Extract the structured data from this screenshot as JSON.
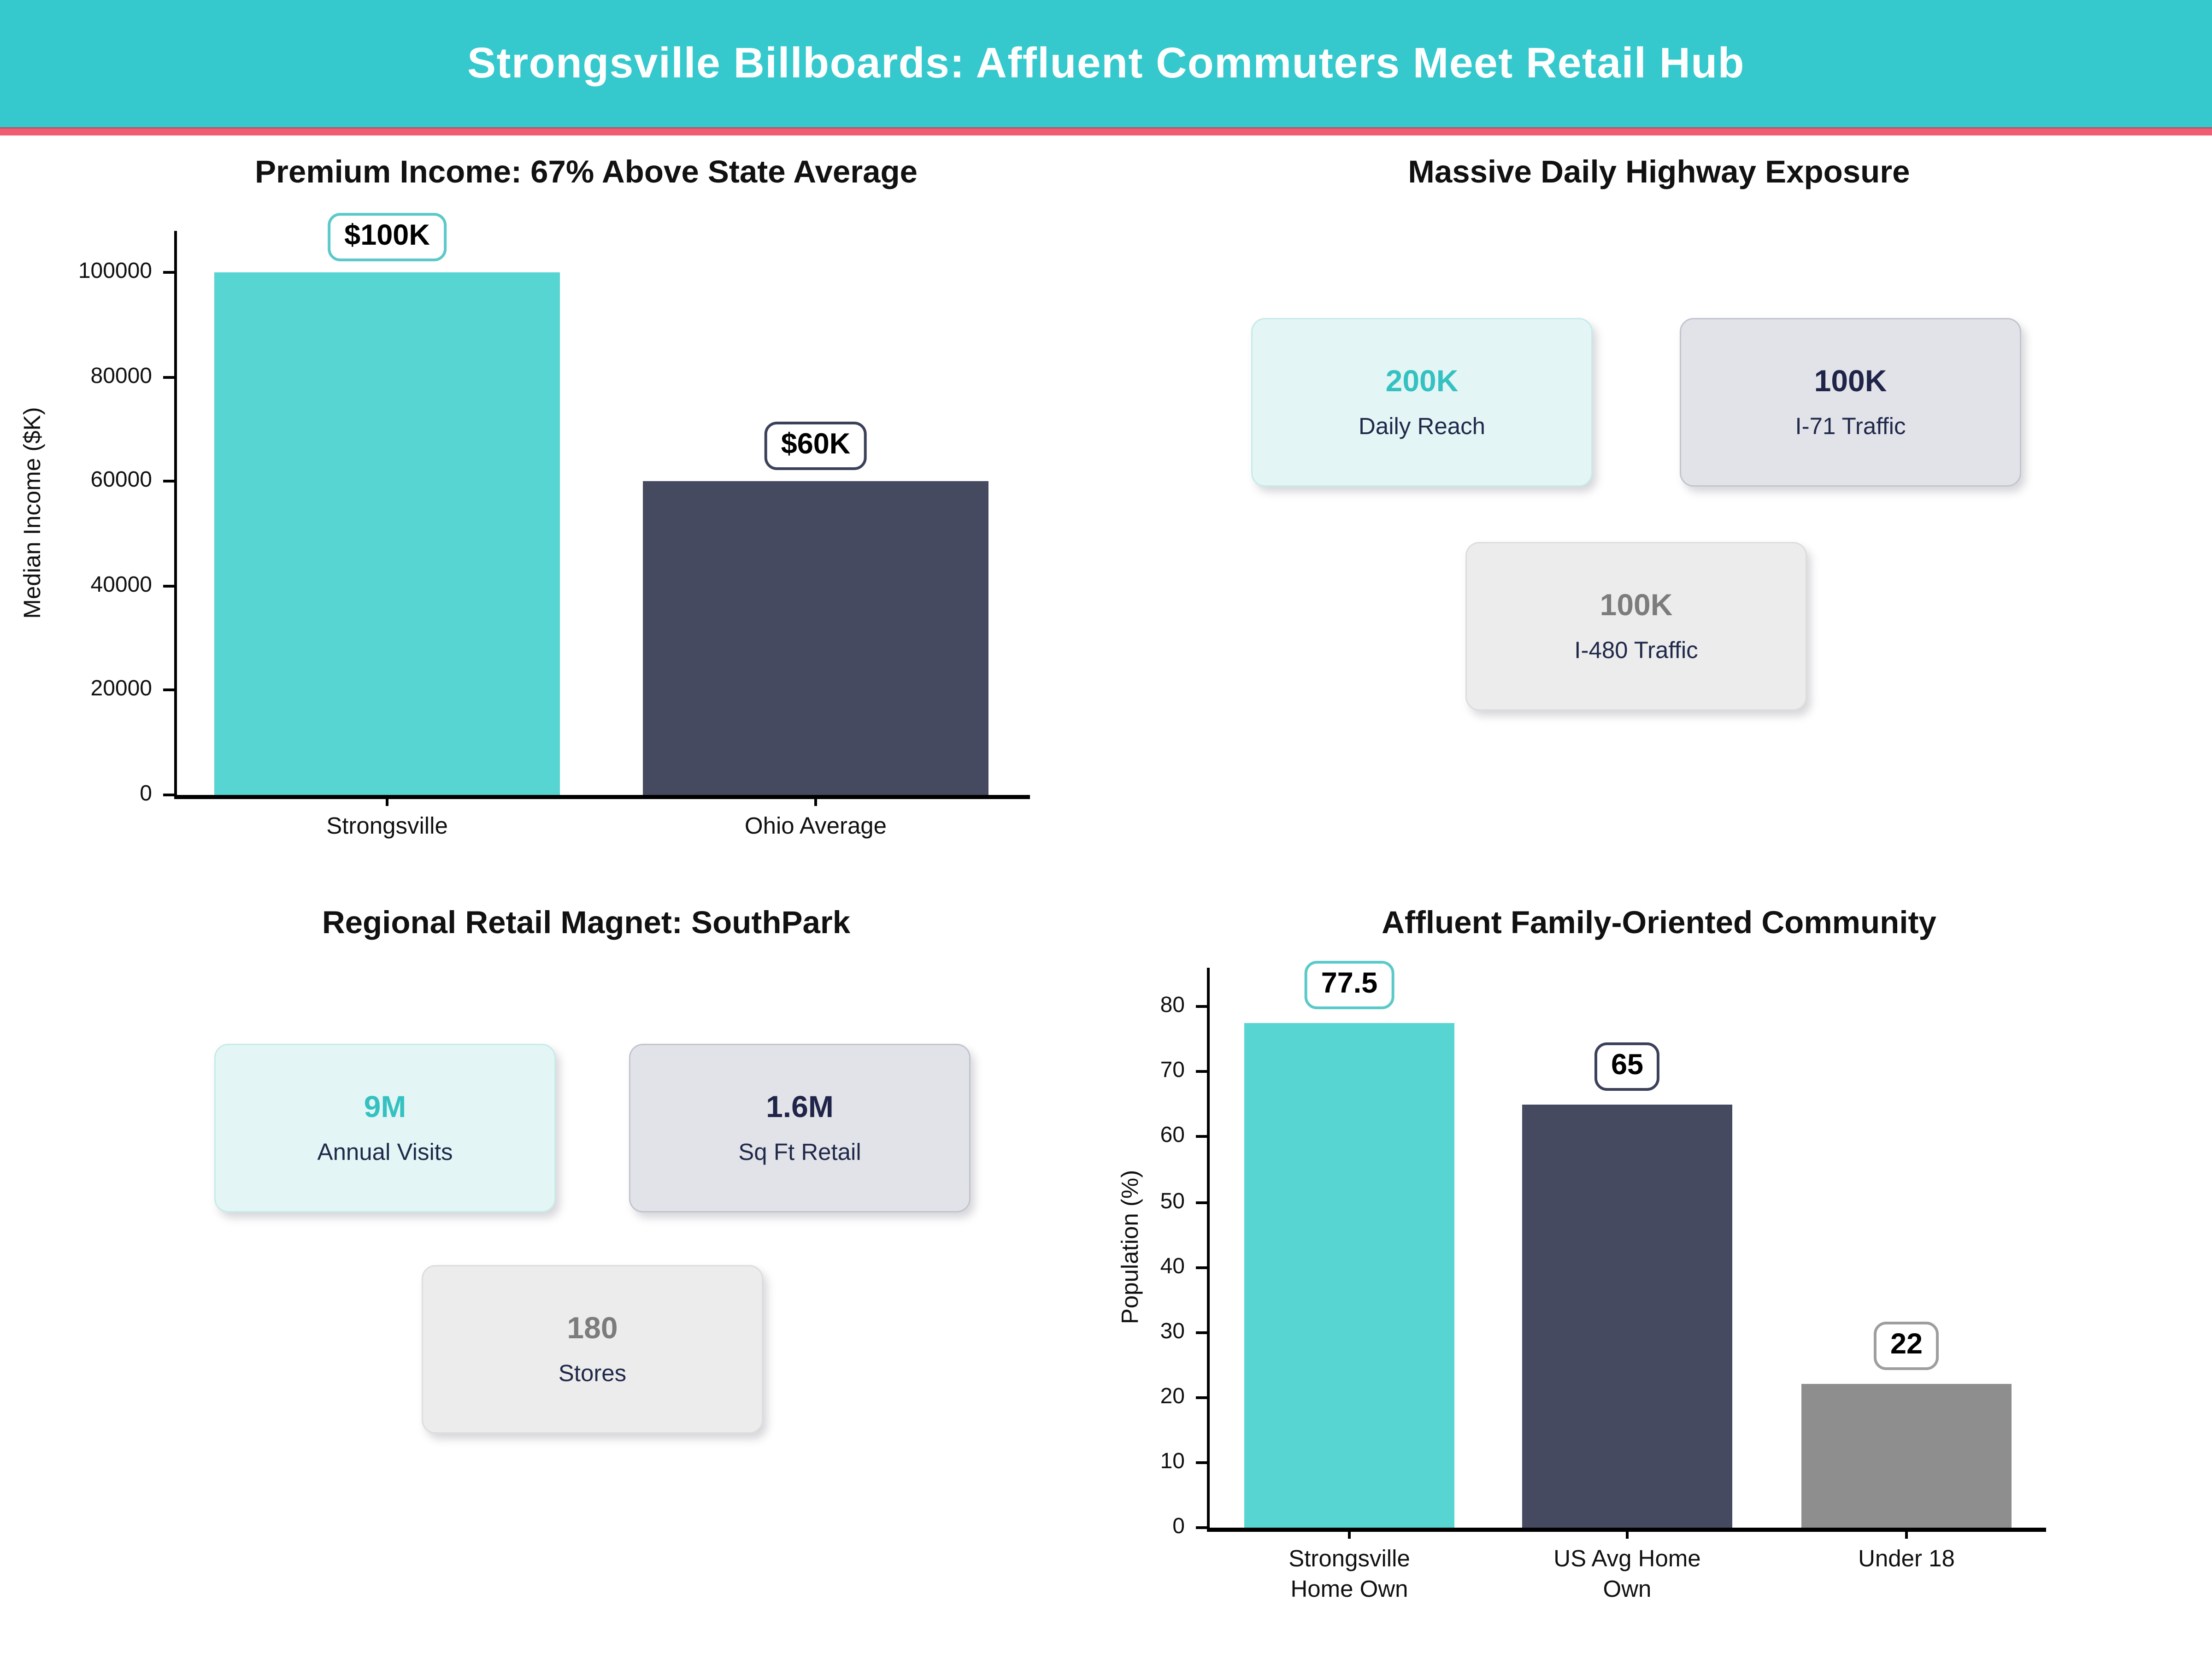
{
  "header": {
    "title": "Strongsville Billboards: Affluent Commuters Meet Retail Hub"
  },
  "colors": {
    "header_bg": "#35C9CD",
    "header_text": "#FFFFFF",
    "accent_strip": "#F05C72",
    "title_text": "#111111",
    "teal_text": "#35C1C1",
    "navy_text": "#1F2448",
    "gray_text": "#7C7C7C",
    "label_navy": "#20294A",
    "mint_bg": "#E3F6F5",
    "mint_border": "#C6EBE9",
    "slate_bg": "#E2E3E9",
    "slate_border": "#C2C4CE",
    "graycard_bg": "#ECECEC",
    "graycard_border": "#DDDDDD"
  },
  "panels": {
    "exposure": {
      "title": "Massive Daily Highway Exposure",
      "cards": [
        {
          "value": "200K",
          "label": "Daily Reach",
          "variant": "mint"
        },
        {
          "value": "100K",
          "label": "I-71 Traffic",
          "variant": "slate"
        },
        {
          "value": "100K",
          "label": "I-480 Traffic",
          "variant": "gray"
        }
      ]
    },
    "retail": {
      "title": "Regional Retail Magnet: SouthPark",
      "cards": [
        {
          "value": "9M",
          "label": "Annual Visits",
          "variant": "mint"
        },
        {
          "value": "1.6M",
          "label": "Sq Ft Retail",
          "variant": "slate"
        },
        {
          "value": "180",
          "label": "Stores",
          "variant": "gray"
        }
      ]
    }
  },
  "chart_data": [
    {
      "type": "bar",
      "title": "Premium Income: 67% Above State Average",
      "categories": [
        "Strongsville",
        "Ohio Average"
      ],
      "values": [
        100000,
        60000
      ],
      "data_labels": [
        "$100K",
        "$60K"
      ],
      "xlabel": "",
      "ylabel": "Median Income ($K)",
      "yticks": [
        0,
        20000,
        40000,
        60000,
        80000,
        100000
      ],
      "ylim": [
        0,
        108000
      ],
      "grid": false,
      "legend": "none",
      "bar_colors": [
        "#57D5D2",
        "#454A60"
      ],
      "label_border_colors": [
        "#5BC9C9",
        "#3C415A"
      ]
    },
    {
      "type": "bar",
      "title": "Affluent Family-Oriented Community",
      "categories": [
        [
          "Strongsville",
          "Home Own"
        ],
        [
          "US Avg Home",
          "Own"
        ],
        [
          "Under 18"
        ]
      ],
      "values": [
        77.5,
        65,
        22
      ],
      "data_labels": [
        "77.5",
        "65",
        "22"
      ],
      "xlabel": "",
      "ylabel": "Population (%)",
      "yticks": [
        0,
        10,
        20,
        30,
        40,
        50,
        60,
        70,
        80
      ],
      "ylim": [
        0,
        86
      ],
      "grid": false,
      "legend": "none",
      "bar_colors": [
        "#57D5D2",
        "#454A60",
        "#8E8E8E"
      ],
      "label_border_colors": [
        "#5BC9C9",
        "#3C415A",
        "#9E9E9E"
      ]
    }
  ]
}
